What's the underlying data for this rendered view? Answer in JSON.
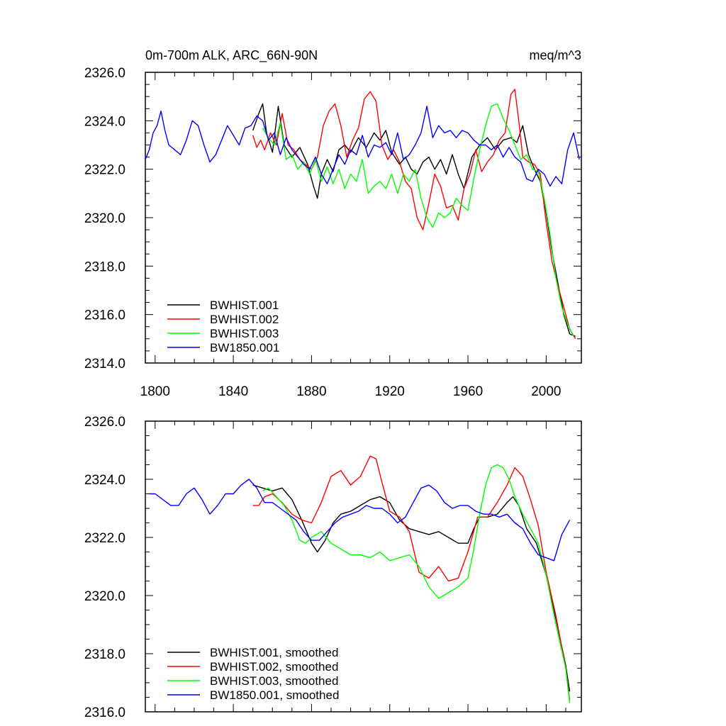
{
  "chart_data": [
    {
      "type": "line",
      "title": "0m-700m ALK, ARC_66N-90N",
      "units": "meq/m^3",
      "xlim": [
        1795,
        2018
      ],
      "ylim": [
        2314,
        2326
      ],
      "x_ticks": [
        "1800",
        "1840",
        "1880",
        "1920",
        "1960",
        "2000"
      ],
      "y_ticks": [
        "2314.0",
        "2316.0",
        "2318.0",
        "2320.0",
        "2322.0",
        "2324.0",
        "2326.0"
      ],
      "legend_position": "lower-left",
      "grid": false,
      "series": [
        {
          "name": "BWHIST.001",
          "color": "#000000",
          "x": [
            1850,
            1853,
            1855,
            1857,
            1860,
            1863,
            1866,
            1870,
            1874,
            1878,
            1881,
            1883,
            1885,
            1888,
            1891,
            1894,
            1897,
            1900,
            1904,
            1908,
            1912,
            1915,
            1918,
            1921,
            1925,
            1928,
            1931,
            1934,
            1937,
            1940,
            1943,
            1946,
            1949,
            1952,
            1955,
            1958,
            1962,
            1966,
            1970,
            1974,
            1978,
            1982,
            1985,
            1988,
            1991,
            1994,
            1997,
            2000,
            2003,
            2006,
            2009,
            2012,
            2015
          ],
          "y": [
            2323.6,
            2324.3,
            2324.7,
            2323.5,
            2322.7,
            2324.6,
            2323.0,
            2322.5,
            2322.9,
            2322.2,
            2321.3,
            2320.8,
            2321.8,
            2322.4,
            2321.9,
            2322.8,
            2323.0,
            2322.7,
            2323.3,
            2322.9,
            2323.5,
            2323.2,
            2323.6,
            2322.7,
            2322.2,
            2322.5,
            2322.0,
            2321.8,
            2322.3,
            2322.5,
            2322.0,
            2322.4,
            2321.8,
            2322.6,
            2321.8,
            2321.2,
            2322.5,
            2323.0,
            2323.3,
            2322.8,
            2323.2,
            2323.3,
            2323.1,
            2323.8,
            2322.6,
            2322.0,
            2321.5,
            2320.2,
            2318.6,
            2317.3,
            2316.0,
            2315.2,
            2315.1
          ]
        },
        {
          "name": "BWHIST.002",
          "color": "#ff0000",
          "x": [
            1850,
            1852,
            1854,
            1856,
            1859,
            1862,
            1865,
            1868,
            1871,
            1874,
            1877,
            1880,
            1883,
            1886,
            1889,
            1892,
            1895,
            1898,
            1901,
            1904,
            1907,
            1910,
            1913,
            1916,
            1919,
            1922,
            1925,
            1928,
            1931,
            1934,
            1937,
            1940,
            1943,
            1946,
            1949,
            1952,
            1955,
            1958,
            1961,
            1964,
            1967,
            1970,
            1973,
            1976,
            1979,
            1982,
            1984,
            1986,
            1988,
            1991,
            1994,
            1997,
            2000,
            2003,
            2006,
            2009,
            2012,
            2015
          ],
          "y": [
            2323.4,
            2322.9,
            2323.2,
            2322.8,
            2323.5,
            2323.0,
            2324.3,
            2323.0,
            2322.8,
            2322.4,
            2322.2,
            2322.0,
            2322.5,
            2323.8,
            2324.4,
            2324.7,
            2323.8,
            2322.5,
            2323.2,
            2323.7,
            2324.9,
            2325.2,
            2324.8,
            2323.0,
            2322.4,
            2322.8,
            2322.3,
            2321.5,
            2321.2,
            2320.0,
            2319.5,
            2320.6,
            2321.8,
            2321.3,
            2320.4,
            2320.5,
            2319.9,
            2321.2,
            2321.8,
            2322.8,
            2321.9,
            2322.3,
            2322.6,
            2323.2,
            2323.5,
            2325.1,
            2325.3,
            2324.0,
            2322.5,
            2322.3,
            2322.2,
            2321.8,
            2319.8,
            2318.2,
            2317.2,
            2316.3,
            2315.4,
            2315.0
          ]
        },
        {
          "name": "BWHIST.003",
          "color": "#00ff00",
          "x": [
            1855,
            1858,
            1861,
            1864,
            1867,
            1870,
            1873,
            1876,
            1879,
            1882,
            1885,
            1888,
            1891,
            1894,
            1897,
            1900,
            1903,
            1906,
            1909,
            1912,
            1915,
            1918,
            1921,
            1924,
            1927,
            1930,
            1933,
            1936,
            1939,
            1942,
            1945,
            1948,
            1951,
            1954,
            1957,
            1960,
            1963,
            1966,
            1969,
            1972,
            1975,
            1978,
            1981,
            1984,
            1987,
            1990,
            1993,
            1996,
            1999,
            2002,
            2005,
            2008,
            2011,
            2014
          ],
          "y": [
            2323.7,
            2323.3,
            2323.0,
            2323.9,
            2322.4,
            2322.6,
            2322.0,
            2322.3,
            2321.8,
            2322.4,
            2321.5,
            2322.1,
            2321.4,
            2322.0,
            2321.2,
            2321.8,
            2321.5,
            2322.4,
            2321.0,
            2321.3,
            2321.5,
            2321.2,
            2321.8,
            2321.0,
            2321.8,
            2321.5,
            2322.0,
            2320.8,
            2320.0,
            2319.6,
            2320.2,
            2320.0,
            2320.2,
            2320.8,
            2320.5,
            2320.3,
            2321.6,
            2322.8,
            2323.8,
            2324.6,
            2324.7,
            2324.1,
            2323.6,
            2323.0,
            2322.4,
            2322.6,
            2322.0,
            2321.9,
            2320.8,
            2319.3,
            2317.5,
            2316.3,
            2315.6,
            2315.1
          ]
        },
        {
          "name": "BW1850.001",
          "color": "#0000ff",
          "x": [
            1795,
            1797,
            1799,
            1801,
            1803,
            1805,
            1807,
            1810,
            1813,
            1816,
            1819,
            1822,
            1825,
            1828,
            1831,
            1834,
            1837,
            1840,
            1843,
            1846,
            1849,
            1852,
            1855,
            1858,
            1861,
            1864,
            1867,
            1870,
            1873,
            1876,
            1879,
            1882,
            1885,
            1888,
            1891,
            1894,
            1897,
            1900,
            1903,
            1906,
            1909,
            1912,
            1915,
            1918,
            1921,
            1924,
            1927,
            1930,
            1933,
            1936,
            1939,
            1942,
            1945,
            1948,
            1951,
            1954,
            1957,
            1960,
            1963,
            1966,
            1969,
            1972,
            1975,
            1978,
            1981,
            1984,
            1987,
            1990,
            1993,
            1996,
            1999,
            2002,
            2005,
            2008,
            2011,
            2014,
            2017
          ],
          "y": [
            2322.4,
            2322.8,
            2323.5,
            2323.8,
            2324.4,
            2323.6,
            2323.0,
            2322.8,
            2322.6,
            2323.2,
            2324.0,
            2323.8,
            2323.0,
            2322.3,
            2322.6,
            2323.2,
            2323.8,
            2323.4,
            2323.0,
            2323.7,
            2323.8,
            2324.2,
            2324.0,
            2323.2,
            2323.5,
            2322.6,
            2323.3,
            2322.8,
            2322.5,
            2322.2,
            2322.0,
            2322.5,
            2321.8,
            2321.4,
            2322.0,
            2322.6,
            2322.2,
            2322.8,
            2322.6,
            2323.4,
            2322.5,
            2323.0,
            2322.9,
            2323.1,
            2322.6,
            2323.5,
            2322.4,
            2322.6,
            2323.0,
            2323.5,
            2324.6,
            2323.3,
            2323.8,
            2323.5,
            2323.6,
            2323.3,
            2323.6,
            2323.5,
            2323.2,
            2323.0,
            2323.0,
            2322.8,
            2323.0,
            2322.5,
            2322.9,
            2322.5,
            2322.3,
            2321.6,
            2321.5,
            2322.0,
            2321.8,
            2321.3,
            2321.7,
            2321.4,
            2322.8,
            2323.5,
            2322.4
          ]
        }
      ]
    },
    {
      "type": "line",
      "title": "",
      "xlim": [
        1795,
        2018
      ],
      "ylim": [
        2316,
        2326
      ],
      "y_ticks": [
        "2316.0",
        "2318.0",
        "2320.0",
        "2322.0",
        "2324.0",
        "2326.0"
      ],
      "legend_position": "lower-left",
      "grid": false,
      "series": [
        {
          "name": "BWHIST.001, smoothed",
          "color": "#000000",
          "x": [
            1850,
            1855,
            1860,
            1865,
            1870,
            1875,
            1880,
            1883,
            1887,
            1891,
            1895,
            1900,
            1905,
            1910,
            1915,
            1920,
            1925,
            1930,
            1935,
            1940,
            1945,
            1950,
            1955,
            1960,
            1963,
            1966,
            1970,
            1975,
            1980,
            1983,
            1986,
            1990,
            1995,
            2000,
            2005,
            2010,
            2012
          ],
          "y": [
            2323.8,
            2323.7,
            2323.6,
            2323.7,
            2323.3,
            2322.6,
            2321.8,
            2321.5,
            2321.9,
            2322.5,
            2322.8,
            2322.9,
            2323.1,
            2323.3,
            2323.4,
            2323.2,
            2322.6,
            2322.3,
            2322.2,
            2322.1,
            2322.2,
            2322.0,
            2321.8,
            2321.8,
            2322.3,
            2322.7,
            2322.7,
            2322.8,
            2323.2,
            2323.4,
            2323.1,
            2322.3,
            2321.8,
            2320.7,
            2319.2,
            2317.6,
            2316.7
          ]
        },
        {
          "name": "BWHIST.002, smoothed",
          "color": "#ff0000",
          "x": [
            1850,
            1853,
            1856,
            1860,
            1865,
            1870,
            1875,
            1880,
            1885,
            1890,
            1895,
            1900,
            1905,
            1910,
            1913,
            1916,
            1920,
            1925,
            1930,
            1935,
            1940,
            1945,
            1950,
            1955,
            1960,
            1965,
            1970,
            1975,
            1980,
            1984,
            1988,
            1992,
            1996,
            2000,
            2005,
            2010,
            2012
          ],
          "y": [
            2323.1,
            2323.1,
            2323.4,
            2323.5,
            2323.2,
            2322.8,
            2322.6,
            2322.5,
            2323.2,
            2324.1,
            2324.3,
            2323.8,
            2324.1,
            2324.8,
            2324.7,
            2323.9,
            2322.9,
            2322.7,
            2322.2,
            2320.8,
            2320.6,
            2321.0,
            2320.5,
            2320.6,
            2321.5,
            2322.7,
            2322.7,
            2323.2,
            2323.8,
            2324.4,
            2324.1,
            2323.3,
            2322.4,
            2320.8,
            2319.3,
            2317.5,
            2316.4
          ]
        },
        {
          "name": "BWHIST.003, smoothed",
          "color": "#00ff00",
          "x": [
            1855,
            1858,
            1862,
            1866,
            1870,
            1874,
            1877,
            1880,
            1885,
            1890,
            1895,
            1900,
            1905,
            1910,
            1915,
            1920,
            1925,
            1930,
            1935,
            1940,
            1945,
            1950,
            1955,
            1960,
            1963,
            1966,
            1969,
            1972,
            1975,
            1978,
            1981,
            1984,
            1988,
            1992,
            1996,
            2000,
            2005,
            2010,
            2012
          ],
          "y": [
            2323.6,
            2323.7,
            2323.4,
            2323.1,
            2322.6,
            2321.9,
            2321.8,
            2322.0,
            2322.2,
            2321.8,
            2321.6,
            2321.4,
            2321.4,
            2321.3,
            2321.5,
            2321.2,
            2321.3,
            2321.4,
            2321.0,
            2320.3,
            2319.9,
            2320.1,
            2320.3,
            2320.6,
            2321.6,
            2322.8,
            2323.8,
            2324.4,
            2324.5,
            2324.4,
            2324.0,
            2323.4,
            2322.8,
            2322.3,
            2321.8,
            2320.7,
            2319.0,
            2317.5,
            2316.3
          ]
        },
        {
          "name": "BW1850.001, smoothed",
          "color": "#0000ff",
          "x": [
            1797,
            1800,
            1804,
            1808,
            1812,
            1816,
            1820,
            1824,
            1828,
            1832,
            1836,
            1840,
            1844,
            1848,
            1852,
            1856,
            1860,
            1864,
            1868,
            1872,
            1876,
            1880,
            1884,
            1888,
            1892,
            1896,
            1900,
            1904,
            1908,
            1912,
            1916,
            1920,
            1924,
            1928,
            1932,
            1936,
            1940,
            1944,
            1948,
            1952,
            1956,
            1960,
            1964,
            1968,
            1972,
            1976,
            1980,
            1984,
            1988,
            1992,
            1996,
            2000,
            2004,
            2008,
            2012
          ],
          "y": [
            2323.5,
            2323.5,
            2323.3,
            2323.1,
            2323.1,
            2323.5,
            2323.7,
            2323.3,
            2322.8,
            2323.1,
            2323.5,
            2323.5,
            2323.8,
            2324.0,
            2323.7,
            2323.2,
            2323.2,
            2323.0,
            2322.8,
            2322.6,
            2322.2,
            2321.9,
            2321.9,
            2322.2,
            2322.5,
            2322.7,
            2322.8,
            2322.9,
            2323.1,
            2323.0,
            2323.0,
            2322.8,
            2322.5,
            2322.7,
            2323.2,
            2323.7,
            2323.8,
            2323.6,
            2323.2,
            2323.0,
            2323.1,
            2323.1,
            2322.9,
            2322.8,
            2322.8,
            2322.7,
            2322.8,
            2322.5,
            2322.3,
            2321.8,
            2321.4,
            2321.3,
            2321.2,
            2322.1,
            2322.6
          ]
        }
      ]
    }
  ]
}
